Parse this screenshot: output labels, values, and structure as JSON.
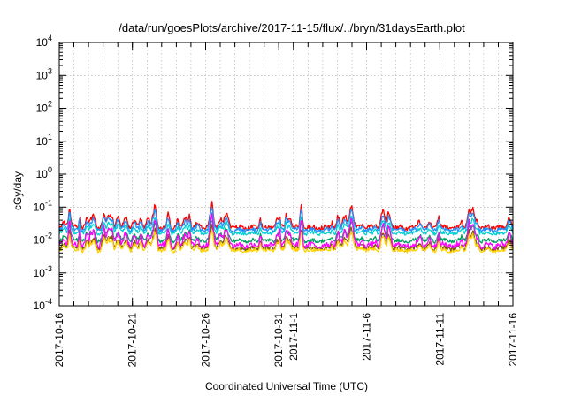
{
  "chart_data": {
    "type": "line",
    "title": "/data/run/goesPlots/archive/2017-11-15/flux/../bryn/31daysEarth.plot",
    "xlabel": "Coordinated Universal Time (UTC)",
    "ylabel": "cGy/day",
    "yscale": "log",
    "ylim": [
      0.0001,
      10000
    ],
    "xlim": [
      "2017-10-16",
      "2017-11-16"
    ],
    "grid": true,
    "legend": "none",
    "y_ticks": [
      {
        "value": 0.0001,
        "base": "10",
        "exp": "-4"
      },
      {
        "value": 0.001,
        "base": "10",
        "exp": "-3"
      },
      {
        "value": 0.01,
        "base": "10",
        "exp": "-2"
      },
      {
        "value": 0.1,
        "base": "10",
        "exp": "-1"
      },
      {
        "value": 1,
        "base": "10",
        "exp": "0"
      },
      {
        "value": 10,
        "base": "10",
        "exp": "1"
      },
      {
        "value": 100,
        "base": "10",
        "exp": "2"
      },
      {
        "value": 1000,
        "base": "10",
        "exp": "3"
      },
      {
        "value": 10000,
        "base": "10",
        "exp": "4"
      }
    ],
    "x_ticks": [
      {
        "date": "2017-10-16",
        "label": "2017-10-16"
      },
      {
        "date": "2017-10-21",
        "label": "2017-10-21"
      },
      {
        "date": "2017-10-26",
        "label": "2017-10-26"
      },
      {
        "date": "2017-10-31",
        "label": "2017-10-31"
      },
      {
        "date": "2017-11-01",
        "label": "2017-11-1"
      },
      {
        "date": "2017-11-06",
        "label": "2017-11-6"
      },
      {
        "date": "2017-11-11",
        "label": "2017-11-11"
      },
      {
        "date": "2017-11-16",
        "label": "2017-11-16"
      }
    ],
    "series": [
      {
        "color": "#ff0000",
        "base": 0.024,
        "amp": 0.6
      },
      {
        "color": "#1e90ff",
        "base": 0.02,
        "amp": 0.55
      },
      {
        "color": "#00d0d0",
        "base": 0.016,
        "amp": 0.45
      },
      {
        "color": "#00a060",
        "base": 0.0095,
        "amp": 0.5
      },
      {
        "color": "#7a5a10",
        "base": 0.0055,
        "amp": 0.55
      },
      {
        "color": "#ffd000",
        "base": 0.0048,
        "amp": 0.5
      },
      {
        "color": "#ff00ff",
        "base": 0.0068,
        "amp": 0.75
      }
    ]
  }
}
